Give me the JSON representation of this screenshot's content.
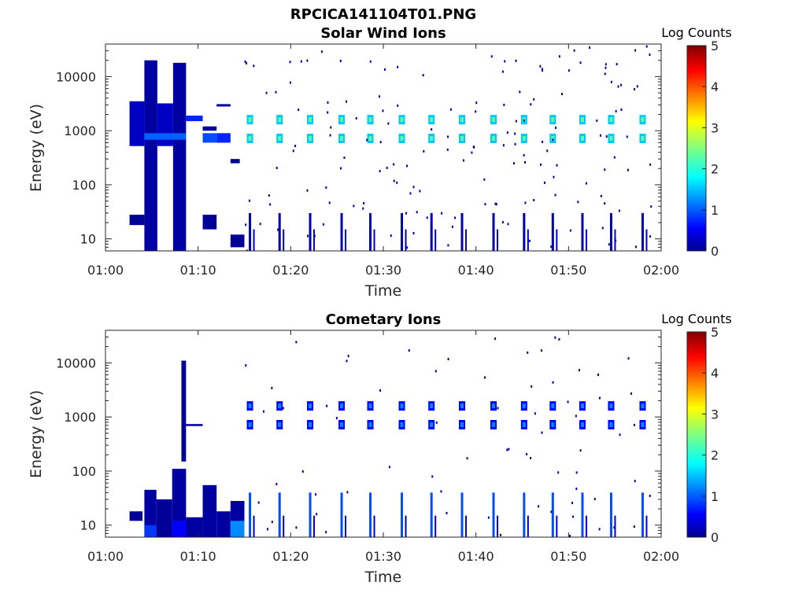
{
  "figure_title": "RPCICA141104T01.PNG",
  "colors": {
    "jet": [
      "#00008f",
      "#0000ff",
      "#0080ff",
      "#00ffff",
      "#80ff80",
      "#ffff00",
      "#ff8000",
      "#ff0000",
      "#800000"
    ]
  },
  "chart_data": [
    {
      "type": "heatmap",
      "title": "Solar Wind Ions",
      "xlabel": "Time",
      "ylabel": "Energy (eV)",
      "x_ticks": [
        "01:00",
        "01:10",
        "01:20",
        "01:30",
        "01:40",
        "01:50",
        "02:00"
      ],
      "x_range_min": [
        0,
        60
      ],
      "y_scale": "log",
      "y_range": [
        6,
        40000
      ],
      "y_ticks": [
        10,
        100,
        1000,
        10000
      ],
      "y_tick_labels": [
        "10",
        "100",
        "1000",
        "10000"
      ],
      "colorbar": {
        "title": "Log Counts",
        "range": [
          0,
          5
        ],
        "ticks": [
          "0",
          "1",
          "2",
          "3",
          "4",
          "5"
        ]
      },
      "blocks": [
        {
          "t": [
            2.6,
            4.2
          ],
          "e": [
            18,
            28
          ],
          "v": 0.05
        },
        {
          "t": [
            2.6,
            4.2
          ],
          "e": [
            520,
            3500
          ],
          "v": 0.3
        },
        {
          "t": [
            4.2,
            5.6
          ],
          "e": [
            6,
            20000
          ],
          "v": 0.1
        },
        {
          "t": [
            5.6,
            7.3
          ],
          "e": [
            520,
            3200
          ],
          "v": 0.3
        },
        {
          "t": [
            7.3,
            8.7
          ],
          "e": [
            6,
            18000
          ],
          "v": 0.1
        },
        {
          "t": [
            4.2,
            8.7
          ],
          "e": [
            680,
            900
          ],
          "v": 1.1
        },
        {
          "t": [
            8.7,
            10.5
          ],
          "e": [
            1500,
            1900
          ],
          "v": 0.8
        },
        {
          "t": [
            10.5,
            12.0
          ],
          "e": [
            1000,
            1200
          ],
          "v": 0.1
        },
        {
          "t": [
            10.5,
            12.0
          ],
          "e": [
            600,
            900
          ],
          "v": 1.0
        },
        {
          "t": [
            12.0,
            13.5
          ],
          "e": [
            600,
            900
          ],
          "v": 0.8
        },
        {
          "t": [
            10.5,
            12.0
          ],
          "e": [
            15,
            28
          ],
          "v": 0.05
        },
        {
          "t": [
            13.5,
            15.0
          ],
          "e": [
            7,
            12
          ],
          "v": 0.05
        },
        {
          "t": [
            12.0,
            13.5
          ],
          "e": [
            2800,
            3100
          ],
          "v": 0.05
        },
        {
          "t": [
            13.5,
            14.5
          ],
          "e": [
            250,
            300
          ],
          "v": 0.05
        }
      ],
      "bursts": [
        15.6,
        18.8,
        22.1,
        25.5,
        28.6,
        32.0,
        35.2,
        38.5,
        41.9,
        45.2,
        48.3,
        51.5,
        54.6,
        58.0
      ],
      "burst_energies": [
        720,
        1600
      ],
      "burst_value": 1.2
    },
    {
      "type": "heatmap",
      "title": "Cometary Ions",
      "xlabel": "Time",
      "ylabel": "Energy (eV)",
      "x_ticks": [
        "01:00",
        "01:10",
        "01:20",
        "01:30",
        "01:40",
        "01:50",
        "02:00"
      ],
      "x_range_min": [
        0,
        60
      ],
      "y_scale": "log",
      "y_range": [
        6,
        40000
      ],
      "y_ticks": [
        10,
        100,
        1000,
        10000
      ],
      "y_tick_labels": [
        "10",
        "100",
        "1000",
        "10000"
      ],
      "colorbar": {
        "title": "Log Counts",
        "range": [
          0,
          5
        ],
        "ticks": [
          "0",
          "1",
          "2",
          "3",
          "4",
          "5"
        ]
      },
      "blocks": [
        {
          "t": [
            2.6,
            4.0
          ],
          "e": [
            12,
            18
          ],
          "v": 0.05
        },
        {
          "t": [
            4.2,
            5.5
          ],
          "e": [
            6,
            45
          ],
          "v": 0.1
        },
        {
          "t": [
            4.2,
            5.5
          ],
          "e": [
            6,
            10
          ],
          "v": 0.9
        },
        {
          "t": [
            5.5,
            7.2
          ],
          "e": [
            6,
            30
          ],
          "v": 0.05
        },
        {
          "t": [
            7.2,
            8.7
          ],
          "e": [
            6,
            110
          ],
          "v": 0.1
        },
        {
          "t": [
            7.2,
            8.7
          ],
          "e": [
            6,
            12
          ],
          "v": 0.6
        },
        {
          "t": [
            8.2,
            8.7
          ],
          "e": [
            150,
            11000
          ],
          "v": 0.05
        },
        {
          "t": [
            8.7,
            10.5
          ],
          "e": [
            6,
            14
          ],
          "v": 0.1
        },
        {
          "t": [
            10.5,
            12.0
          ],
          "e": [
            6,
            55
          ],
          "v": 0.1
        },
        {
          "t": [
            12.0,
            13.5
          ],
          "e": [
            6,
            18
          ],
          "v": 0.1
        },
        {
          "t": [
            13.5,
            15.0
          ],
          "e": [
            6,
            28
          ],
          "v": 0.1
        },
        {
          "t": [
            13.5,
            15.0
          ],
          "e": [
            6,
            12
          ],
          "v": 1.3
        },
        {
          "t": [
            8.7,
            10.5
          ],
          "e": [
            680,
            740
          ],
          "v": 0.05
        }
      ],
      "bursts": [
        15.6,
        18.8,
        22.1,
        25.5,
        28.6,
        32.0,
        35.2,
        38.5,
        41.9,
        45.2,
        48.3,
        51.5,
        54.6,
        58.0
      ],
      "burst_energies": [
        720,
        1600
      ],
      "burst_value": 0.2
    }
  ]
}
